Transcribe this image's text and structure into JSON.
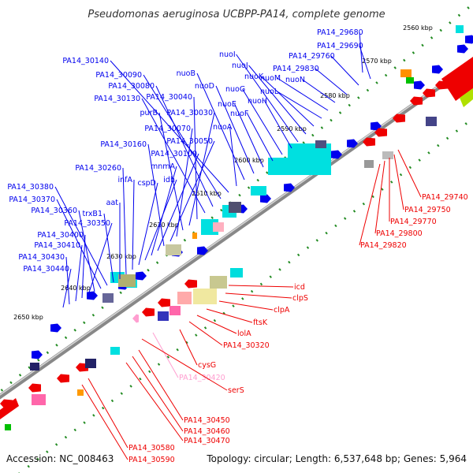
{
  "title": "Pseudomonas aeruginosa UCBPP-PA14, complete genome",
  "footer": {
    "accession": "Accession: NC_008463",
    "summary": "Topology: circular; Length: 6,537,648 bp; Genes: 5,964"
  },
  "colors": {
    "forward": "#0000ee",
    "reverse": "#ee0000",
    "pseudo": "#ff9ed0",
    "cds": "#00e0e0",
    "tick": "#228B22",
    "backbone": "#808080"
  },
  "ticks": [
    "2560 kbp",
    "2570 kbp",
    "2580 kbp",
    "2590 kbp",
    "2600 kbp",
    "2610 kbp",
    "2620 kbp",
    "2630 kbp",
    "2640 kbp",
    "2650 kbp"
  ],
  "forward_labels": [
    "PA14_29680",
    "PA14_29690",
    "PA14_29760",
    "PA14_29830",
    "nuoN",
    "nuoM",
    "nuoL",
    "nuoK",
    "nuoJ",
    "nuoI",
    "nuoH",
    "nuoG",
    "nuoF",
    "nuoE",
    "nuoD",
    "nuoB",
    "nuoA",
    "PA14_30140",
    "PA14_30090",
    "PA14_30080",
    "PA14_30130",
    "PA14_30040",
    "PA14_30030",
    "purB",
    "PA14_30070",
    "PA14_30050",
    "PA14_30160",
    "PA14_30100",
    "mnmA",
    "idh",
    "cspD",
    "infA",
    "PA14_30260",
    "aat",
    "trxB1",
    "PA14_30380",
    "PA14_30370",
    "PA14_30360",
    "PA14_30350",
    "PA14_30400",
    "PA14_30410",
    "PA14_30430",
    "PA14_30440"
  ],
  "reverse_labels": [
    "PA14_29740",
    "PA14_29750",
    "PA14_29770",
    "PA14_29800",
    "PA14_29820",
    "icd",
    "clpS",
    "clpA",
    "ftsK",
    "lolA",
    "PA14_30320",
    "cysG",
    "PA14_30420",
    "serS",
    "PA14_30450",
    "PA14_30460",
    "PA14_30470",
    "PA14_30580",
    "PA14_30590"
  ]
}
